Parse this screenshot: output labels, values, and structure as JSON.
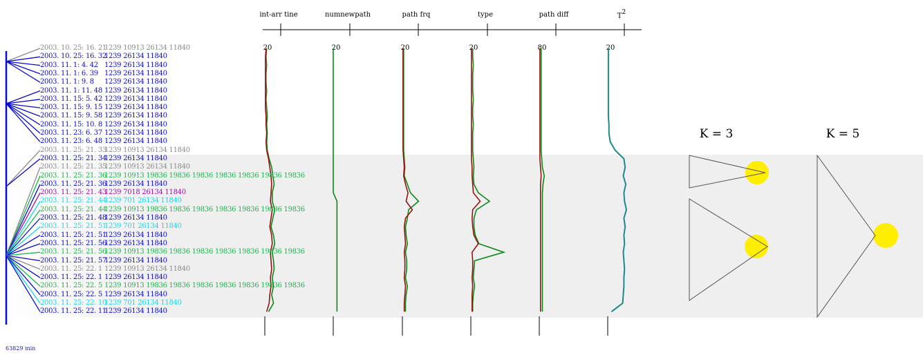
{
  "colors": {
    "blue": "#0b0bd0",
    "gray": "#8a8a8a",
    "green": "#18b84a",
    "purple": "#9a12a8",
    "cyan": "#12d8e8",
    "series_red": "#9a1010",
    "series_green": "#0a8a14",
    "t2_teal": "#1a8a8a",
    "highlight": "#ffee00"
  },
  "event_list": [
    {
      "time": "2003. 10. 25: 16. 21",
      "path": "1239  10913  26134  11840",
      "color": "gray"
    },
    {
      "time": "2003. 10. 25: 16. 32",
      "path": "1239  26134  11840",
      "color": "blue"
    },
    {
      "time": "2003. 11. 1: 4. 42",
      "path": "1239  26134  11840",
      "color": "blue"
    },
    {
      "time": "2003. 11. 1: 6. 39",
      "path": "1239  26134  11840",
      "color": "blue"
    },
    {
      "time": "2003. 11. 1: 9. 8",
      "path": "1239  26134  11840",
      "color": "blue"
    },
    {
      "time": "2003. 11. 1: 11. 48",
      "path": "1239  26134  11840",
      "color": "blue"
    },
    {
      "time": "2003. 11. 15: 5. 42",
      "path": "1239  26134  11840",
      "color": "blue"
    },
    {
      "time": "2003. 11. 15: 9. 15",
      "path": "1239  26134  11840",
      "color": "blue"
    },
    {
      "time": "2003. 11. 15: 9. 58",
      "path": "1239  26134  11840",
      "color": "blue"
    },
    {
      "time": "2003. 11. 15: 10. 8",
      "path": "1239  26134  11840",
      "color": "blue"
    },
    {
      "time": "2003. 11. 23: 6. 37",
      "path": "1239  26134  11840",
      "color": "blue"
    },
    {
      "time": "2003. 11. 23: 6. 48",
      "path": "1239  26134  11840",
      "color": "blue"
    },
    {
      "time": "2003. 11. 25: 21. 33",
      "path": "1239  10913  26134  11840",
      "color": "gray"
    },
    {
      "time": "2003. 11. 25: 21. 34",
      "path": "1239  26134  11840",
      "color": "blue"
    },
    {
      "time": "2003. 11. 25: 21. 35",
      "path": "1239  10913  26134  11840",
      "color": "gray"
    },
    {
      "time": "2003. 11. 25: 21. 36",
      "path": "1239  10913  19836  19836  19836  19836  19836  19836  19836",
      "color": "green"
    },
    {
      "time": "2003. 11. 25: 21. 36",
      "path": "1239  26134  11840",
      "color": "blue"
    },
    {
      "time": "2003. 11. 25: 21. 43",
      "path": "1239  7018  26134  11840",
      "color": "purple"
    },
    {
      "time": "2003. 11. 25: 21. 44",
      "path": "1239  701  26134  11840",
      "color": "cyan"
    },
    {
      "time": "2003. 11. 25: 21. 44",
      "path": "1239  10913  19836  19836  19836  19836  19836  19836  19836",
      "color": "green"
    },
    {
      "time": "2003. 11. 25: 21. 48",
      "path": "1239  26134  11840",
      "color": "blue"
    },
    {
      "time": "2003. 11. 25: 21. 51",
      "path": "1239  701  26134  11840",
      "color": "cyan"
    },
    {
      "time": "2003. 11. 25: 21. 51",
      "path": "1239  26134  11840",
      "color": "blue"
    },
    {
      "time": "2003. 11. 25: 21. 56",
      "path": "1239  26134  11840",
      "color": "blue"
    },
    {
      "time": "2003. 11. 25: 21. 56",
      "path": "1239  10913  19836  19836  19836  19836  19836  19836  19836",
      "color": "green"
    },
    {
      "time": "2003. 11. 25: 21. 57",
      "path": "1239  26134  11840",
      "color": "blue"
    },
    {
      "time": "2003. 11. 25: 22. 1",
      "path": "1239  10913  26134  11840",
      "color": "gray"
    },
    {
      "time": "2003. 11. 25: 22. 1",
      "path": "1239  26134  11840",
      "color": "blue"
    },
    {
      "time": "2003. 11. 25: 22. 5",
      "path": "1239  10913  19836  19836  19836  19836  19836  19836  19836",
      "color": "green"
    },
    {
      "time": "2003. 11. 25: 22. 5",
      "path": "1239  26134  11840",
      "color": "blue"
    },
    {
      "time": "2003. 11. 25: 22. 10",
      "path": "1239  701  26134  11840",
      "color": "cyan"
    },
    {
      "time": "2003. 11. 25: 22. 11",
      "path": "1239  26134  11840",
      "color": "blue"
    }
  ],
  "columns": [
    {
      "label": "int-arr tine",
      "scale": "20",
      "red": [
        0.2,
        0.1,
        0.1,
        0.1,
        0.1,
        0.1,
        0.1,
        0.1,
        0.2,
        0.2,
        0.3,
        0.2,
        0.3,
        0.6,
        0.8,
        1.0,
        1.1,
        1.0,
        0.9,
        1.2,
        1.0,
        0.8,
        1.1,
        1.2,
        0.9,
        1.0,
        1.1,
        0.9,
        1.0,
        0.8,
        0.7,
        0.3
      ],
      "green": [
        0.3,
        0.2,
        0.3,
        0.2,
        0.2,
        0.3,
        0.2,
        0.3,
        0.4,
        0.3,
        0.4,
        0.3,
        0.4,
        0.7,
        1.1,
        1.3,
        1.5,
        1.2,
        1.2,
        1.6,
        1.3,
        1.0,
        1.4,
        1.6,
        1.2,
        1.4,
        1.5,
        1.2,
        1.4,
        1.1,
        1.4,
        0.6
      ]
    },
    {
      "label": "numnewpath",
      "scale": "20",
      "red": [],
      "green": [
        0,
        0,
        0,
        0,
        0,
        0,
        0,
        0,
        0,
        0,
        0,
        0,
        0,
        0,
        0,
        0,
        0,
        0,
        0.6,
        0.6,
        0.6,
        0.6,
        0.6,
        0.6,
        0.6,
        0.6,
        0.6,
        0.6,
        0.6,
        0.6,
        0.6,
        0.6
      ]
    },
    {
      "label": "path frq",
      "scale": "20",
      "red": [
        0.1,
        0.1,
        0.1,
        0.1,
        0.1,
        0.1,
        0.1,
        0.1,
        0.1,
        0.1,
        0.1,
        0.1,
        0.1,
        0.2,
        0.3,
        0.2,
        0.5,
        0.9,
        0.6,
        1.6,
        0.5,
        0.3,
        0.4,
        0.5,
        0.3,
        0.4,
        0.4,
        0.3,
        0.5,
        0.4,
        0.3,
        0.3
      ],
      "green": [
        0.2,
        0.2,
        0.2,
        0.2,
        0.2,
        0.2,
        0.2,
        0.2,
        0.2,
        0.2,
        0.2,
        0.2,
        0.2,
        0.3,
        0.4,
        0.3,
        0.8,
        1.3,
        2.6,
        1.0,
        0.8,
        0.5,
        0.6,
        0.8,
        0.5,
        0.7,
        0.7,
        0.5,
        0.8,
        0.6,
        0.5,
        0.5
      ]
    },
    {
      "label": "type",
      "scale": "20",
      "red": [
        0.1,
        0.1,
        0.1,
        0.1,
        0.1,
        0.1,
        0.1,
        0.1,
        0.1,
        0.1,
        0.1,
        0.1,
        0.1,
        0.1,
        0.2,
        0.2,
        0.3,
        0.4,
        1.5,
        0.3,
        0.2,
        0.3,
        0.5,
        1.2,
        0.2,
        0.3,
        0.3,
        0.2,
        0.3,
        0.2,
        0.2,
        0.2
      ],
      "green": [
        0.3,
        0.3,
        0.4,
        0.3,
        0.3,
        0.3,
        0.4,
        0.3,
        0.3,
        0.4,
        0.3,
        0.3,
        0.3,
        0.4,
        0.5,
        0.4,
        0.5,
        1.2,
        3.0,
        0.9,
        0.5,
        0.5,
        0.7,
        1.3,
        5.3,
        0.6,
        0.5,
        0.4,
        0.6,
        0.4,
        0.3,
        0.3
      ]
    },
    {
      "label": "path diff",
      "scale": "80",
      "red": [
        0.1,
        0.1,
        0.1,
        0.1,
        0.1,
        0.1,
        0.1,
        0.1,
        0.1,
        0.1,
        0.1,
        0.1,
        0.1,
        0.1,
        0.2,
        0.3,
        0.2,
        0.2,
        0.2,
        0.2,
        0.2,
        0.2,
        0.2,
        0.2,
        0.2,
        0.2,
        0.2,
        0.2,
        0.2,
        0.2,
        0.2,
        0.2
      ],
      "green": [
        0.3,
        0.3,
        0.3,
        0.3,
        0.3,
        0.3,
        0.3,
        0.3,
        0.3,
        0.3,
        0.3,
        0.3,
        0.3,
        0.4,
        0.5,
        0.8,
        0.6,
        0.5,
        0.5,
        0.5,
        0.5,
        0.5,
        0.5,
        0.5,
        0.5,
        0.5,
        0.5,
        0.5,
        0.5,
        0.5,
        0.5,
        0.5
      ]
    },
    {
      "label": "T2",
      "scale": "20",
      "red": [],
      "teal": [
        0.1,
        0.1,
        0.1,
        0.1,
        0.1,
        0.1,
        0.1,
        0.1,
        0.1,
        0.2,
        0.2,
        0.4,
        1.2,
        2.6,
        2.8,
        2.5,
        2.9,
        2.6,
        2.7,
        3.0,
        2.6,
        2.8,
        2.6,
        2.7,
        2.5,
        2.6,
        2.7,
        2.6,
        2.6,
        2.5,
        2.4,
        0.6
      ]
    }
  ],
  "t2_label": {
    "base": "T",
    "sup": "2"
  },
  "k_diagrams": [
    {
      "label": "K = 3"
    },
    {
      "label": "K = 5"
    }
  ],
  "footer": {
    "duration": "63829 min"
  }
}
